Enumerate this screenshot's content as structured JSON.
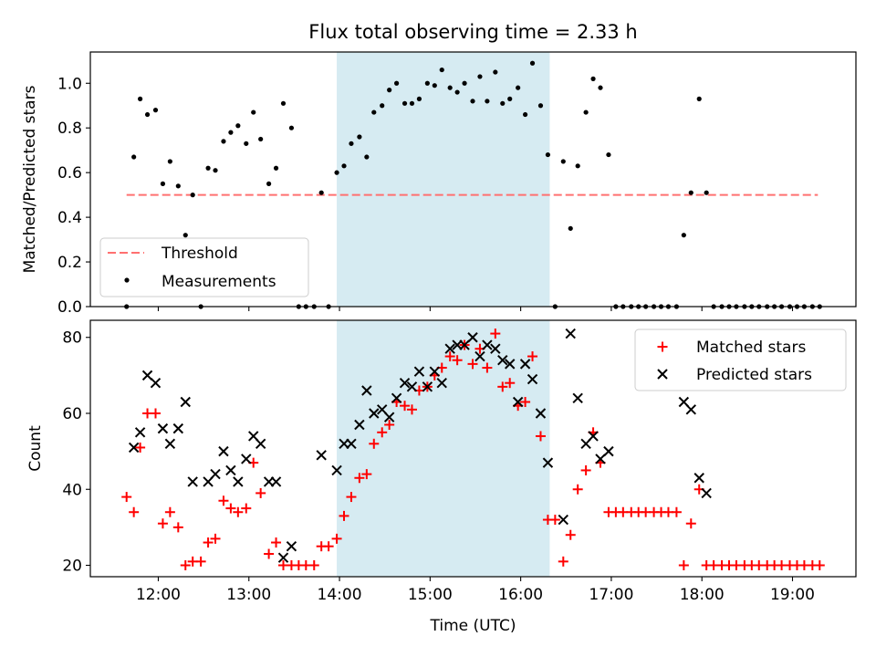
{
  "title": "Flux total observing time = 2.33 h",
  "colors": {
    "threshold": "#ff7070",
    "measurement": "#000000",
    "matched": "#ff0000",
    "predicted": "#000000",
    "span": "#add8e6"
  },
  "x_ticks": [
    {
      "label": "12:00",
      "h": 12
    },
    {
      "label": "13:00",
      "h": 13
    },
    {
      "label": "14:00",
      "h": 14
    },
    {
      "label": "15:00",
      "h": 15
    },
    {
      "label": "16:00",
      "h": 16
    },
    {
      "label": "17:00",
      "h": 17
    },
    {
      "label": "18:00",
      "h": 18
    },
    {
      "label": "19:00",
      "h": 19
    }
  ],
  "chart_data": [
    {
      "type": "scatter",
      "name": "ratio",
      "ylabel": "Matched/Predicted stars",
      "xlim": [
        11.25,
        19.7
      ],
      "ylim": [
        0,
        1.14
      ],
      "yticks": [
        "0.0",
        "0.2",
        "0.4",
        "0.6",
        "0.8",
        "1.0"
      ],
      "highlight_span": [
        13.97,
        16.32
      ],
      "threshold": {
        "label": "Threshold",
        "value": 0.5,
        "x_range": [
          11.65,
          19.28
        ]
      },
      "legend": {
        "position": "lower-left",
        "entries": [
          "Threshold",
          "Measurements"
        ]
      },
      "series": [
        {
          "name": "Measurements",
          "x": [
            11.65,
            11.73,
            11.8,
            11.88,
            11.97,
            12.05,
            12.13,
            12.22,
            12.3,
            12.38,
            12.47,
            12.55,
            12.63,
            12.72,
            12.8,
            12.88,
            12.97,
            13.05,
            13.13,
            13.22,
            13.3,
            13.38,
            13.47,
            13.55,
            13.63,
            13.72,
            13.8,
            13.88,
            13.97,
            14.05,
            14.13,
            14.22,
            14.3,
            14.38,
            14.47,
            14.55,
            14.63,
            14.72,
            14.8,
            14.88,
            14.97,
            15.05,
            15.13,
            15.22,
            15.3,
            15.38,
            15.47,
            15.55,
            15.63,
            15.72,
            15.8,
            15.88,
            15.97,
            16.05,
            16.13,
            16.22,
            16.3,
            16.38,
            16.47,
            16.55,
            16.63,
            16.72,
            16.8,
            16.88,
            16.97,
            17.05,
            17.13,
            17.22,
            17.3,
            17.38,
            17.47,
            17.55,
            17.63,
            17.72,
            17.8,
            17.88,
            17.97,
            18.05,
            18.13,
            18.22,
            18.3,
            18.38,
            18.47,
            18.55,
            18.63,
            18.72,
            18.8,
            18.88,
            18.97,
            19.05,
            19.13,
            19.22,
            19.3
          ],
          "y": [
            0.0,
            0.67,
            0.93,
            0.86,
            0.88,
            0.55,
            0.65,
            0.54,
            0.32,
            0.5,
            0.0,
            0.62,
            0.61,
            0.74,
            0.78,
            0.81,
            0.73,
            0.87,
            0.75,
            0.55,
            0.62,
            0.91,
            0.8,
            0.0,
            0.0,
            0.0,
            0.51,
            0.0,
            0.6,
            0.63,
            0.73,
            0.76,
            0.67,
            0.87,
            0.9,
            0.97,
            1.0,
            0.91,
            0.91,
            0.93,
            1.0,
            0.99,
            1.06,
            0.98,
            0.96,
            1.0,
            0.92,
            1.03,
            0.92,
            1.05,
            0.91,
            0.93,
            0.98,
            0.86,
            1.09,
            0.9,
            0.68,
            0.0,
            0.65,
            0.35,
            0.63,
            0.87,
            1.02,
            0.98,
            0.68,
            0.0,
            0.0,
            0.0,
            0.0,
            0.0,
            0.0,
            0.0,
            0.0,
            0.0,
            0.32,
            0.51,
            0.93,
            0.51,
            0.0,
            0.0,
            0.0,
            0.0,
            0.0,
            0.0,
            0.0,
            0.0,
            0.0,
            0.0,
            0.0,
            0.0,
            0.0,
            0.0,
            0.0
          ]
        }
      ]
    },
    {
      "type": "scatter",
      "name": "counts",
      "ylabel": "Count",
      "xlabel": "Time (UTC)",
      "xlim": [
        11.25,
        19.7
      ],
      "ylim": [
        17,
        84.5
      ],
      "yticks": [
        "20",
        "40",
        "60",
        "80"
      ],
      "highlight_span": [
        13.97,
        16.32
      ],
      "legend": {
        "position": "top-right",
        "entries": [
          "Matched stars",
          "Predicted stars"
        ]
      },
      "series": [
        {
          "name": "Matched stars",
          "x": [
            11.65,
            11.73,
            11.8,
            11.88,
            11.97,
            12.05,
            12.13,
            12.22,
            12.3,
            12.38,
            12.47,
            12.55,
            12.63,
            12.72,
            12.8,
            12.88,
            12.97,
            13.05,
            13.13,
            13.22,
            13.3,
            13.38,
            13.47,
            13.55,
            13.63,
            13.72,
            13.8,
            13.88,
            13.97,
            14.05,
            14.13,
            14.22,
            14.3,
            14.38,
            14.47,
            14.55,
            14.63,
            14.72,
            14.8,
            14.88,
            14.97,
            15.05,
            15.13,
            15.22,
            15.3,
            15.38,
            15.47,
            15.55,
            15.63,
            15.72,
            15.8,
            15.88,
            15.97,
            16.05,
            16.13,
            16.22,
            16.3,
            16.38,
            16.47,
            16.55,
            16.63,
            16.72,
            16.8,
            16.88,
            16.97,
            17.05,
            17.13,
            17.22,
            17.3,
            17.38,
            17.47,
            17.55,
            17.63,
            17.72,
            17.8,
            17.88,
            17.97,
            18.05,
            18.13,
            18.22,
            18.3,
            18.38,
            18.47,
            18.55,
            18.63,
            18.72,
            18.8,
            18.88,
            18.97,
            19.05,
            19.13,
            19.22,
            19.3
          ],
          "y": [
            38,
            34,
            51,
            60,
            60,
            31,
            34,
            30,
            20,
            21,
            21,
            26,
            27,
            37,
            35,
            34,
            35,
            47,
            39,
            23,
            26,
            20,
            20,
            20,
            20,
            20,
            25,
            25,
            27,
            33,
            38,
            43,
            44,
            52,
            55,
            57,
            63,
            62,
            61,
            66,
            67,
            70,
            72,
            75,
            74,
            78,
            73,
            77,
            72,
            81,
            67,
            68,
            62,
            63,
            75,
            54,
            32,
            32,
            21,
            28,
            40,
            45,
            55,
            47,
            34,
            34,
            34,
            34,
            34,
            34,
            34,
            34,
            34,
            34,
            20,
            31,
            40,
            20,
            20,
            20,
            20,
            20,
            20,
            20,
            20,
            20,
            20,
            20,
            20,
            20,
            20,
            20,
            20
          ]
        },
        {
          "name": "Predicted stars",
          "x": [
            11.73,
            11.8,
            11.88,
            11.97,
            12.05,
            12.13,
            12.22,
            12.3,
            12.38,
            12.55,
            12.63,
            12.72,
            12.8,
            12.88,
            12.97,
            13.05,
            13.13,
            13.22,
            13.3,
            13.38,
            13.47,
            13.8,
            13.97,
            14.05,
            14.13,
            14.22,
            14.3,
            14.38,
            14.47,
            14.55,
            14.63,
            14.72,
            14.8,
            14.88,
            14.97,
            15.05,
            15.13,
            15.22,
            15.3,
            15.38,
            15.47,
            15.55,
            15.63,
            15.72,
            15.8,
            15.88,
            15.97,
            16.05,
            16.13,
            16.22,
            16.3,
            16.47,
            16.55,
            16.63,
            16.72,
            16.8,
            16.88,
            16.97,
            17.8,
            17.88,
            17.97,
            18.05
          ],
          "y": [
            51,
            55,
            70,
            68,
            56,
            52,
            56,
            63,
            42,
            42,
            44,
            50,
            45,
            42,
            48,
            54,
            52,
            42,
            42,
            22,
            25,
            49,
            45,
            52,
            52,
            57,
            66,
            60,
            61,
            59,
            64,
            68,
            67,
            71,
            67,
            71,
            68,
            77,
            78,
            78,
            80,
            75,
            78,
            77,
            74,
            73,
            63,
            73,
            69,
            60,
            47,
            32,
            81,
            64,
            52,
            54,
            48,
            50,
            63,
            61,
            43,
            39
          ]
        }
      ]
    }
  ]
}
